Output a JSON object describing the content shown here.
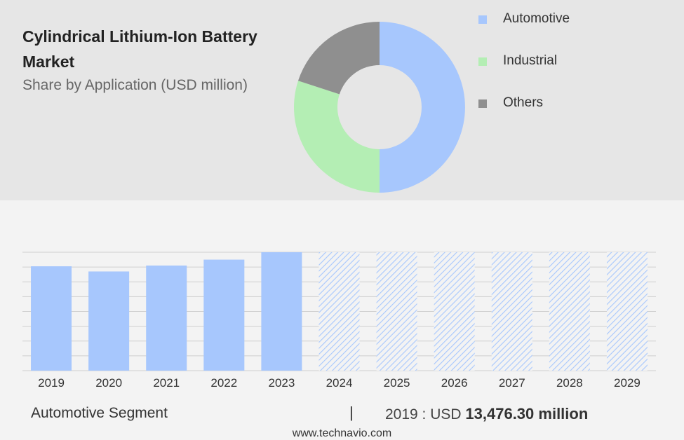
{
  "title": "Cylindrical Lithium-Ion Battery Market",
  "subtitle": "Share by Application (USD million)",
  "legend": [
    {
      "label": "Automotive",
      "color": "#a7c7fd"
    },
    {
      "label": "Industrial",
      "color": "#b4eeb4"
    },
    {
      "label": "Others",
      "color": "#8f8f8f"
    }
  ],
  "chart_data": [
    {
      "type": "pie",
      "donut": true,
      "title": "Share by Application (USD million)",
      "labels": [
        "Automotive",
        "Industrial",
        "Others"
      ],
      "values": [
        50,
        30,
        20
      ],
      "colors": [
        "#a7c7fd",
        "#b4eeb4",
        "#8f8f8f"
      ],
      "legend_position": "right"
    },
    {
      "type": "bar",
      "categories": [
        "2019",
        "2020",
        "2021",
        "2022",
        "2023",
        "2024",
        "2025",
        "2026",
        "2027",
        "2028",
        "2029"
      ],
      "values": [
        70.5,
        67,
        71,
        75,
        80,
        80,
        80,
        80,
        80,
        80,
        80
      ],
      "forecast": [
        false,
        false,
        false,
        false,
        false,
        true,
        true,
        true,
        true,
        true,
        true
      ],
      "ylim": [
        0,
        80
      ],
      "grid": true,
      "color": "#a7c7fd"
    }
  ],
  "footer": {
    "segment": "Automotive Segment",
    "separator": "|",
    "prefix": "2019 : USD",
    "value": "13,476.30 million"
  },
  "source": "www.technavio.com"
}
